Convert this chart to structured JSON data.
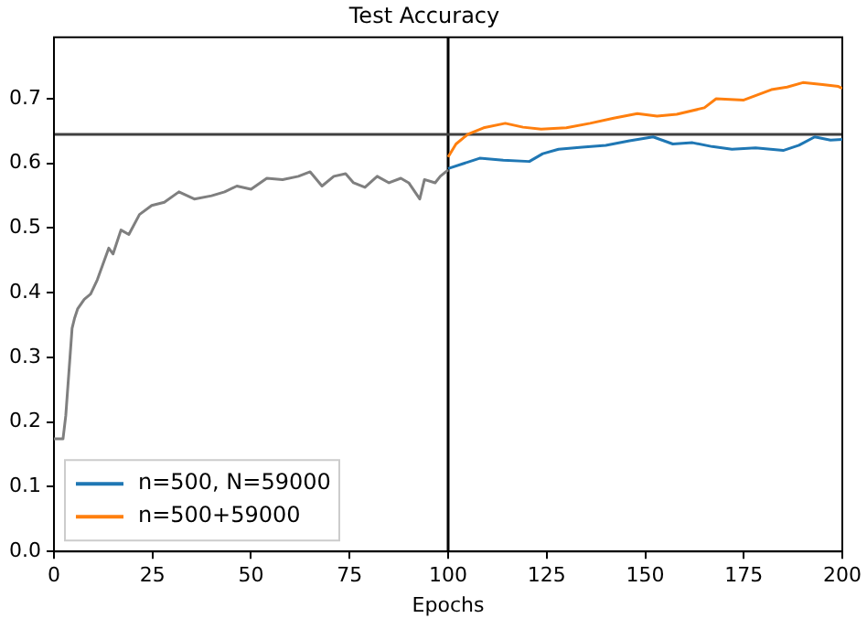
{
  "chart_data": {
    "type": "line",
    "title": "Test Accuracy",
    "xlabel": "Epochs",
    "xlim": [
      0,
      200
    ],
    "xticks": [
      0,
      25,
      50,
      75,
      100,
      125,
      150,
      175,
      200
    ],
    "ylim": [
      0,
      0.795
    ],
    "yticks": [
      {
        "value": 0,
        "label": "0.0"
      },
      0.1,
      0.2,
      0.3,
      0.4,
      0.5,
      0.6,
      0.7
    ],
    "grid": false,
    "legend": "bottom left",
    "marker": "none",
    "line_style": "solid",
    "series": [
      {
        "color": "#7f7f7f",
        "x": [
          0,
          1,
          2.3,
          3,
          4.6,
          5.2,
          6,
          7.7,
          9.3,
          11,
          13.9,
          15,
          17,
          19,
          21.7,
          24.8,
          28,
          31.7,
          35.6,
          40,
          43.3,
          46.4,
          50,
          54,
          58,
          62,
          65,
          68,
          71,
          74,
          76,
          78.9,
          82,
          85,
          88,
          90,
          92.8,
          94,
          96.7,
          98,
          100
        ],
        "values": [
          0.174,
          0.174,
          0.174,
          0.21,
          0.345,
          0.36,
          0.375,
          0.39,
          0.398,
          0.42,
          0.469,
          0.46,
          0.497,
          0.49,
          0.521,
          0.535,
          0.54,
          0.556,
          0.545,
          0.55,
          0.556,
          0.565,
          0.56,
          0.577,
          0.575,
          0.58,
          0.587,
          0.565,
          0.58,
          0.584,
          0.57,
          0.563,
          0.58,
          0.57,
          0.577,
          0.57,
          0.545,
          0.575,
          0.57,
          0.58,
          0.59
        ]
      },
      {
        "name": "n=500, N=59000",
        "color": "#1f77b4",
        "x": [
          100,
          104,
          108,
          114,
          120.6,
          124,
          128,
          134,
          140,
          146,
          152,
          157,
          162,
          167,
          172,
          178,
          185,
          189,
          193,
          197,
          200
        ],
        "values": [
          0.592,
          0.6,
          0.608,
          0.605,
          0.603,
          0.615,
          0.622,
          0.625,
          0.628,
          0.635,
          0.641,
          0.63,
          0.632,
          0.626,
          0.622,
          0.624,
          0.62,
          0.628,
          0.641,
          0.636,
          0.637
        ]
      },
      {
        "name": "n=500+59000",
        "color": "#ff7f0e",
        "x": [
          100,
          102,
          105,
          109,
          114.5,
          119,
          123.6,
          130,
          136,
          142,
          148,
          153,
          158,
          165,
          168,
          175,
          182,
          186,
          190,
          195,
          199,
          200
        ],
        "values": [
          0.61,
          0.63,
          0.645,
          0.655,
          0.662,
          0.656,
          0.653,
          0.655,
          0.662,
          0.67,
          0.677,
          0.673,
          0.676,
          0.686,
          0.7,
          0.698,
          0.714,
          0.718,
          0.725,
          0.722,
          0.719,
          0.716
        ]
      }
    ],
    "ref_lines": [
      {
        "axis": "x",
        "value": 100,
        "color": "#000000"
      },
      {
        "axis": "y",
        "value": 0.645,
        "color": "#404040"
      }
    ]
  }
}
